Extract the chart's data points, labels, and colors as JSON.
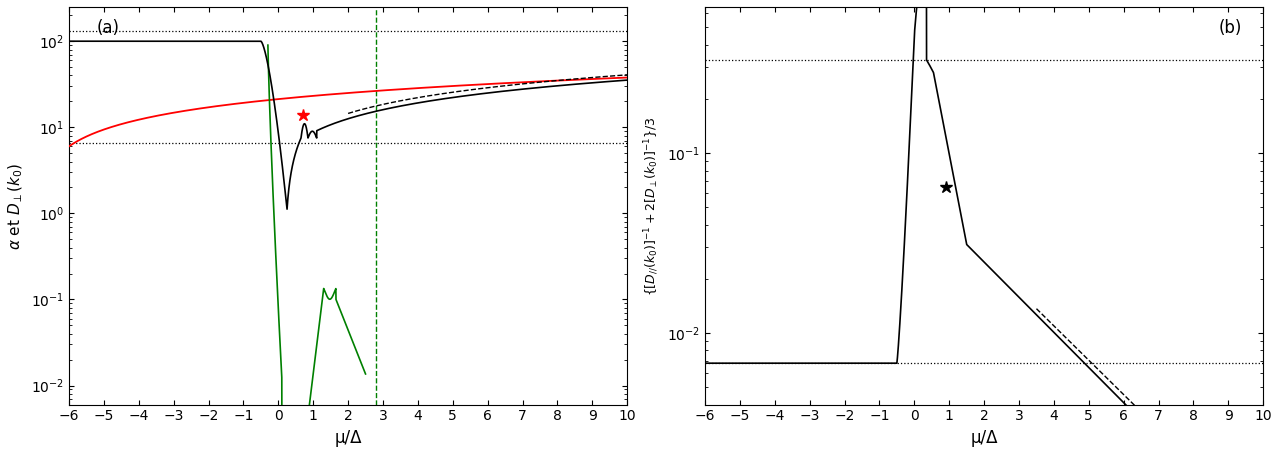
{
  "xlim_a": [
    -6,
    10
  ],
  "ylim_a": [
    0.006,
    250
  ],
  "xlim_b": [
    -6,
    10
  ],
  "ylim_b": [
    0.004,
    0.65
  ],
  "xlabel": "μ/Δ",
  "ylabel_a": "α et $D_{\\perp}$(k$_0$)",
  "ylabel_b": "{[$D_{//}$(k$_0$)]$^{-1}$+2[$D_{\\perp}$(k$_0$)]$^{-1}$}/3",
  "dotted_a_lower": 6.5,
  "dotted_a_upper": 130.0,
  "dotted_b_lower": 0.0068,
  "dotted_b_upper": 0.33,
  "green_vline": 2.8,
  "star_a_x": 0.7,
  "star_a_y": 14.0,
  "star_b_x": 0.9,
  "star_b_y": 0.065,
  "label_a": "(a)",
  "label_b": "(b)"
}
